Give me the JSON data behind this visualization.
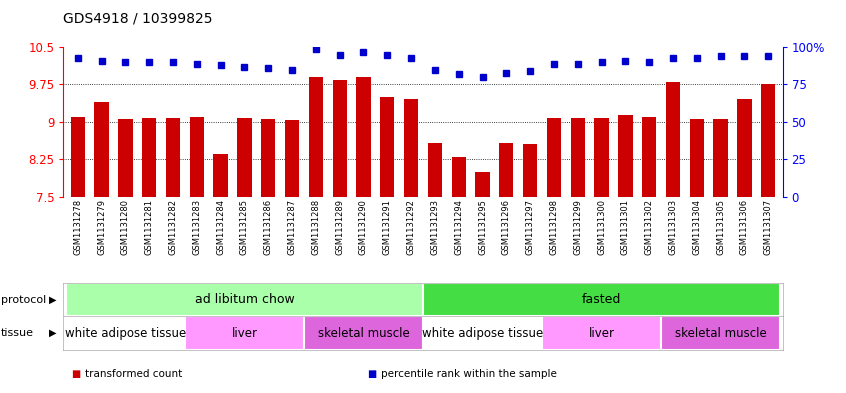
{
  "title": "GDS4918 / 10399825",
  "samples": [
    "GSM1131278",
    "GSM1131279",
    "GSM1131280",
    "GSM1131281",
    "GSM1131282",
    "GSM1131283",
    "GSM1131284",
    "GSM1131285",
    "GSM1131286",
    "GSM1131287",
    "GSM1131288",
    "GSM1131289",
    "GSM1131290",
    "GSM1131291",
    "GSM1131292",
    "GSM1131293",
    "GSM1131294",
    "GSM1131295",
    "GSM1131296",
    "GSM1131297",
    "GSM1131298",
    "GSM1131299",
    "GSM1131300",
    "GSM1131301",
    "GSM1131302",
    "GSM1131303",
    "GSM1131304",
    "GSM1131305",
    "GSM1131306",
    "GSM1131307"
  ],
  "bar_values": [
    9.1,
    9.4,
    9.05,
    9.07,
    9.08,
    9.1,
    8.35,
    9.08,
    9.05,
    9.03,
    9.9,
    9.85,
    9.9,
    9.5,
    9.45,
    8.58,
    8.3,
    8.0,
    8.58,
    8.55,
    9.08,
    9.07,
    9.08,
    9.13,
    9.1,
    9.8,
    9.05,
    9.06,
    9.45,
    9.75
  ],
  "percentile_values": [
    93,
    91,
    90,
    90,
    90,
    89,
    88,
    87,
    86,
    85,
    99,
    95,
    97,
    95,
    93,
    85,
    82,
    80,
    83,
    84,
    89,
    89,
    90,
    91,
    90,
    93,
    93,
    94,
    94,
    94
  ],
  "bar_color": "#cc0000",
  "percentile_color": "#0000cc",
  "ylim_left": [
    7.5,
    10.5
  ],
  "ylim_right": [
    0,
    100
  ],
  "yticks_left": [
    7.5,
    8.25,
    9.0,
    9.75,
    10.5
  ],
  "yticks_right": [
    0,
    25,
    50,
    75,
    100
  ],
  "grid_values": [
    9.75,
    9.0,
    8.25
  ],
  "protocol_groups": [
    {
      "label": "ad libitum chow",
      "start": 0,
      "end": 15,
      "color": "#aaffaa"
    },
    {
      "label": "fasted",
      "start": 15,
      "end": 30,
      "color": "#44dd44"
    }
  ],
  "tissue_groups": [
    {
      "label": "white adipose tissue",
      "start": 0,
      "end": 5,
      "color": "#ffffff"
    },
    {
      "label": "liver",
      "start": 5,
      "end": 10,
      "color": "#ff99ff"
    },
    {
      "label": "skeletal muscle",
      "start": 10,
      "end": 15,
      "color": "#dd66dd"
    },
    {
      "label": "white adipose tissue",
      "start": 15,
      "end": 20,
      "color": "#ffffff"
    },
    {
      "label": "liver",
      "start": 20,
      "end": 25,
      "color": "#ff99ff"
    },
    {
      "label": "skeletal muscle",
      "start": 25,
      "end": 30,
      "color": "#dd66dd"
    }
  ],
  "legend_items": [
    {
      "label": "transformed count",
      "color": "#cc0000"
    },
    {
      "label": "percentile rank within the sample",
      "color": "#0000cc"
    }
  ],
  "background_color": "#f0f0f0"
}
